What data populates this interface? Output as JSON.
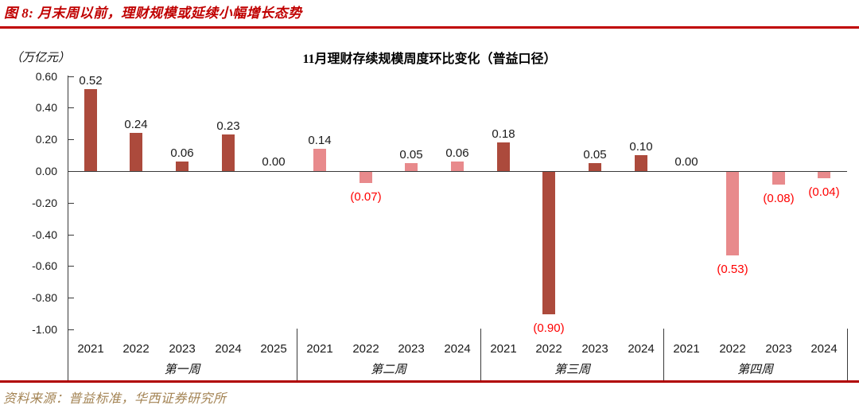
{
  "figure": {
    "title": "图 8:  月末周以前，理财规模或延续小幅增长态势",
    "source": "资料来源：普益标准，华西证券研究所"
  },
  "chart_data": {
    "type": "bar",
    "title": "11月理财存续规模周度环比变化（普益口径）",
    "unit_label": "（万亿元）",
    "ylim": [
      -1.0,
      0.6
    ],
    "ytick_step": 0.2,
    "yticks": [
      "0.60",
      "0.40",
      "0.20",
      "0.00",
      "-0.20",
      "-0.40",
      "-0.60",
      "-0.80",
      "-1.00"
    ],
    "grid": false,
    "legend": "none",
    "negative_label_format": "(abs) in red below bar",
    "groups": [
      {
        "label": "第一周",
        "bar_color": "#AC4A3C",
        "categories": [
          "2021",
          "2022",
          "2023",
          "2024",
          "2025"
        ],
        "values": [
          0.52,
          0.24,
          0.06,
          0.23,
          0.0
        ]
      },
      {
        "label": "第二周",
        "bar_color": "#E88A8C",
        "categories": [
          "2021",
          "2022",
          "2023",
          "2024"
        ],
        "values": [
          0.14,
          -0.07,
          0.05,
          0.06
        ]
      },
      {
        "label": "第三周",
        "bar_color": "#AC4A3C",
        "categories": [
          "2021",
          "2022",
          "2023",
          "2024"
        ],
        "values": [
          0.18,
          -0.9,
          0.05,
          0.1
        ]
      },
      {
        "label": "第四周",
        "bar_color": "#E88A8C",
        "categories": [
          "2021",
          "2022",
          "2023",
          "2024"
        ],
        "values": [
          0.0,
          -0.53,
          -0.08,
          -0.04
        ]
      }
    ]
  },
  "colors": {
    "accent_red": "#C00000",
    "dark_bar": "#AC4A3C",
    "pink_bar": "#E88A8C",
    "negative_label": "#FF0000",
    "source_text": "#A38353",
    "axis": "#3a3a3a"
  }
}
